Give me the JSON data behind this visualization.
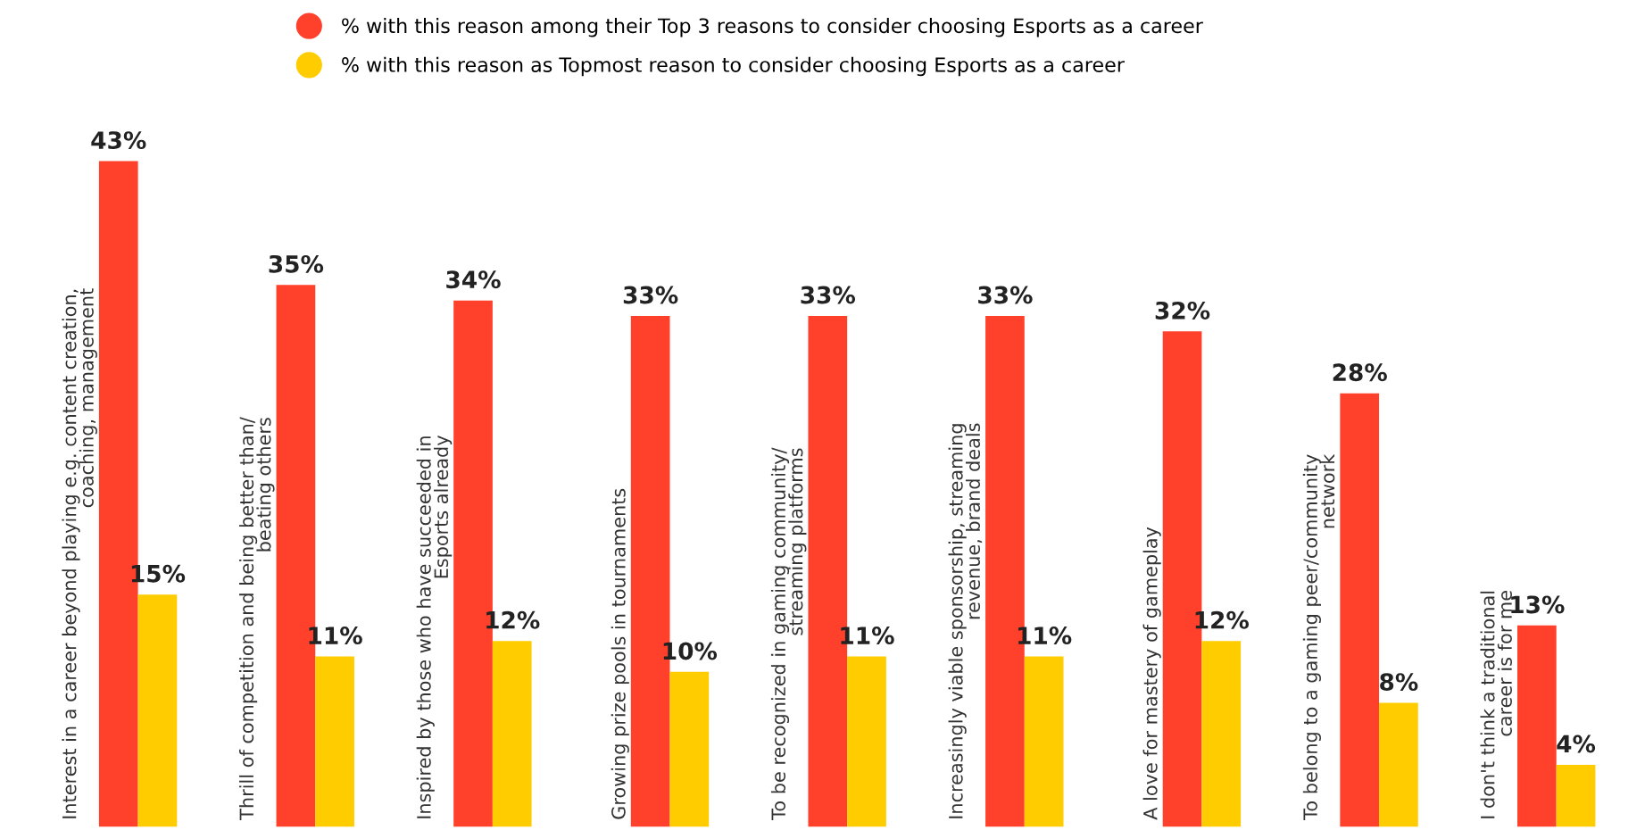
{
  "chart_data": {
    "type": "bar",
    "categories": [
      "Interest in a career beyond playing e.g. content creation,\ncoaching, management",
      "Thrill of competition and being better than/\nbeating others",
      "Inspired by those who have succeeded in\nEsports already",
      "Growing prize pools in tournaments",
      "To be recognized in gaming community/\nstreaming platforms",
      "Increasingly viable sponsorship, streaming\nrevenue, brand deals",
      "A love for mastery of gameplay",
      "To belong to a gaming peer/community\nnetwork",
      "I don't think a traditional\ncareer is for me"
    ],
    "series": [
      {
        "name": "% with this reason among their Top 3 reasons to consider choosing Esports as a career",
        "color": "#ff412c",
        "values": [
          43,
          35,
          34,
          33,
          33,
          33,
          32,
          28,
          13
        ],
        "value_labels": [
          "43%",
          "35%",
          "34%",
          "33%",
          "33%",
          "33%",
          "32%",
          "28%",
          "13%"
        ]
      },
      {
        "name": "% with this reason as Topmost reason to consider choosing Esports as a career",
        "color": "#ffcc00",
        "values": [
          15,
          11,
          12,
          10,
          11,
          11,
          12,
          8,
          4
        ],
        "value_labels": [
          "15%",
          "11%",
          "12%",
          "10%",
          "11%",
          "11%",
          "12%",
          "8%",
          "4%"
        ]
      }
    ],
    "legend": "top"
  }
}
